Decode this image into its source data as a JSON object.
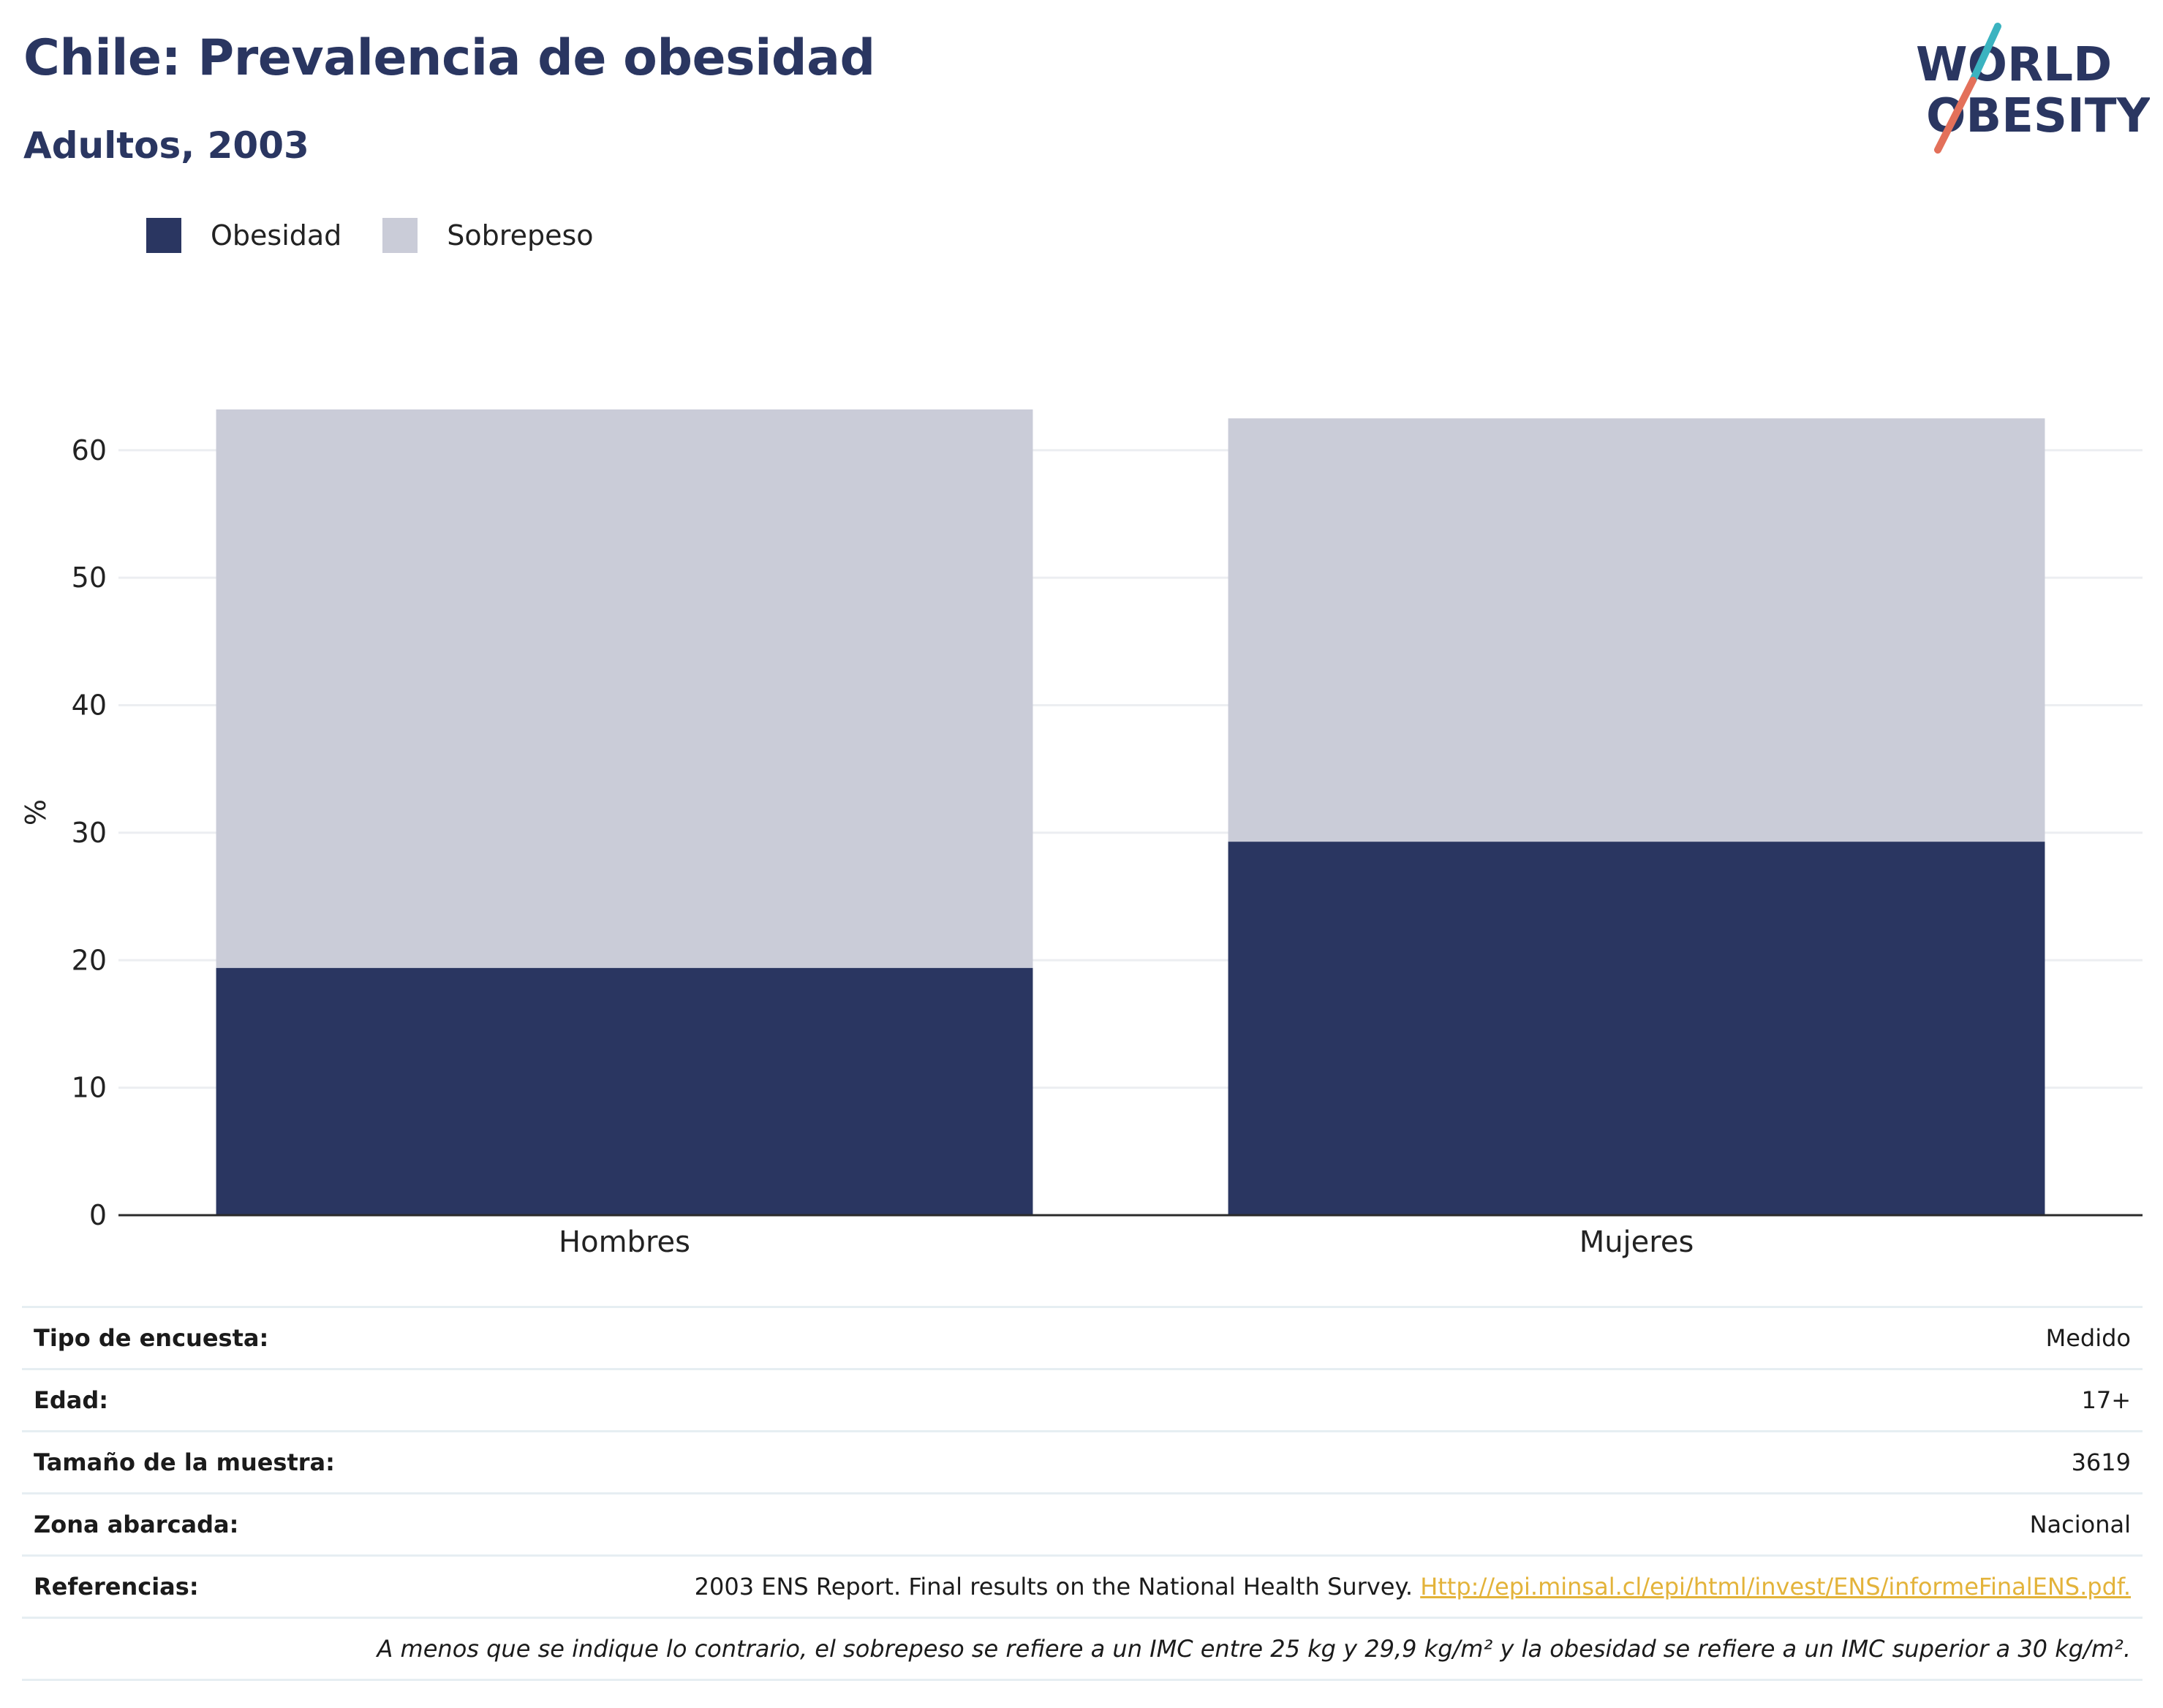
{
  "header": {
    "title": "Chile: Prevalencia de obesidad",
    "subtitle": "Adultos, 2003"
  },
  "logo": {
    "line1": "WORLD",
    "line2": "OBESITY",
    "accent_top": "#3bb3c0",
    "accent_bottom": "#e3705a"
  },
  "colors": {
    "obesidad": "#2a3661",
    "sobrepeso": "#caccd8",
    "link": "#e3b33a",
    "grid": "#eceef1"
  },
  "legend": [
    {
      "label": "Obesidad",
      "color": "#2a3661"
    },
    {
      "label": "Sobrepeso",
      "color": "#caccd8"
    }
  ],
  "chart_data": {
    "type": "bar",
    "stacked": true,
    "categories": [
      "Hombres",
      "Mujeres"
    ],
    "series": [
      {
        "name": "Obesidad",
        "values": [
          19.4,
          29.3
        ],
        "color": "#2a3661"
      },
      {
        "name": "Sobrepeso",
        "values": [
          43.8,
          33.2
        ],
        "color": "#caccd8"
      }
    ],
    "ylabel": "%",
    "ylim": [
      0,
      63.2
    ],
    "yticks": [
      0,
      10,
      20,
      30,
      40,
      50,
      60
    ],
    "grid": true,
    "legend_position": "top-left"
  },
  "meta": {
    "rows": [
      {
        "key": "Tipo de encuesta:",
        "value": "Medido"
      },
      {
        "key": "Edad:",
        "value": "17+"
      },
      {
        "key": "Tamaño de la muestra:",
        "value": "3619"
      },
      {
        "key": "Zona abarcada:",
        "value": "Nacional"
      }
    ],
    "references": {
      "key": "Referencias:",
      "text": "2003 ENS Report. Final results on the National Health Survey. ",
      "link": "Http://epi.minsal.cl/epi/html/invest/ENS/informeFinalENS.pdf."
    },
    "note": "A menos que se indique lo contrario, el sobrepeso se refiere a un IMC entre 25 kg y 29,9 kg/m² y la obesidad se refiere a un IMC superior a 30 kg/m²."
  }
}
